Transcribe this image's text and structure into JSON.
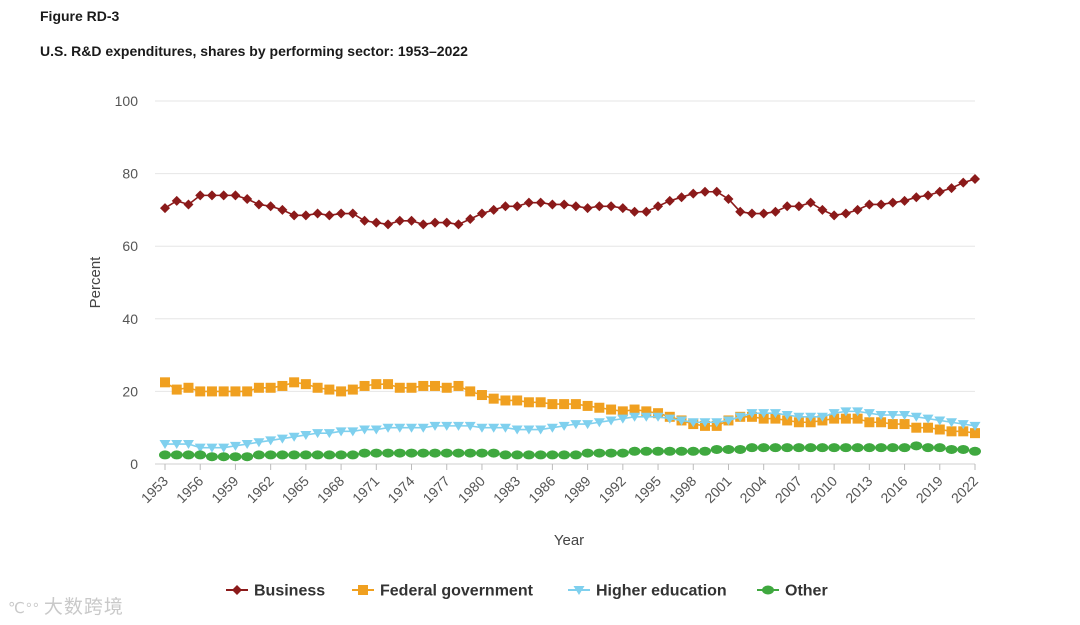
{
  "figure": {
    "label": "Figure RD-3",
    "title": "U.S. R&D expenditures, shares by performing sector: 1953–2022"
  },
  "watermark": {
    "logo": "℃°°",
    "text": "大数跨境"
  },
  "chart_data": {
    "type": "line",
    "title": "U.S. R&D expenditures, shares by performing sector: 1953–2022",
    "xlabel": "Year",
    "ylabel": "Percent",
    "ylim": [
      0,
      100
    ],
    "yticks": [
      0,
      20,
      40,
      60,
      80,
      100
    ],
    "xticks": [
      1953,
      1956,
      1959,
      1962,
      1965,
      1968,
      1971,
      1974,
      1977,
      1980,
      1983,
      1986,
      1989,
      1992,
      1995,
      1998,
      2001,
      2004,
      2007,
      2010,
      2013,
      2016,
      2019,
      2022
    ],
    "grid": true,
    "legend_position": "bottom",
    "x": [
      1953,
      1954,
      1955,
      1956,
      1957,
      1958,
      1959,
      1960,
      1961,
      1962,
      1963,
      1964,
      1965,
      1966,
      1967,
      1968,
      1969,
      1970,
      1971,
      1972,
      1973,
      1974,
      1975,
      1976,
      1977,
      1978,
      1979,
      1980,
      1981,
      1982,
      1983,
      1984,
      1985,
      1986,
      1987,
      1988,
      1989,
      1990,
      1991,
      1992,
      1993,
      1994,
      1995,
      1996,
      1997,
      1998,
      1999,
      2000,
      2001,
      2002,
      2003,
      2004,
      2005,
      2006,
      2007,
      2008,
      2009,
      2010,
      2011,
      2012,
      2013,
      2014,
      2015,
      2016,
      2017,
      2018,
      2019,
      2020,
      2021,
      2022
    ],
    "series": [
      {
        "name": "Business",
        "color": "#8b1a1a",
        "marker": "diamond",
        "values": [
          70.5,
          72.5,
          71.5,
          74,
          74,
          74,
          74,
          73,
          71.5,
          71,
          70,
          68.5,
          68.5,
          69,
          68.5,
          69,
          69,
          67,
          66.5,
          66,
          67,
          67,
          66,
          66.5,
          66.5,
          66,
          67.5,
          69,
          70,
          71,
          71,
          72,
          72,
          71.5,
          71.5,
          71,
          70.5,
          71,
          71,
          70.5,
          69.5,
          69.5,
          71,
          72.5,
          73.5,
          74.5,
          75,
          75,
          73,
          69.5,
          69,
          69,
          69.5,
          71,
          71,
          72,
          70,
          68.5,
          69,
          70,
          71.5,
          71.5,
          72,
          72.5,
          73.5,
          74,
          75,
          76,
          77.5,
          78.5
        ]
      },
      {
        "name": "Federal government",
        "color": "#f0a020",
        "marker": "square",
        "values": [
          22.5,
          20.5,
          21,
          20,
          20,
          20,
          20,
          20,
          21,
          21,
          21.5,
          22.5,
          22,
          21,
          20.5,
          20,
          20.5,
          21.5,
          22,
          22,
          21,
          21,
          21.5,
          21.5,
          21,
          21.5,
          20,
          19,
          18,
          17.5,
          17.5,
          17,
          17,
          16.5,
          16.5,
          16.5,
          16,
          15.5,
          15,
          14.5,
          15,
          14.5,
          14,
          13,
          12,
          11,
          10.5,
          10.5,
          12,
          13,
          13,
          12.5,
          12.5,
          12,
          11.5,
          11.5,
          12,
          12.5,
          12.5,
          12.5,
          11.5,
          11.5,
          11,
          11,
          10,
          10,
          9.5,
          9,
          9,
          8.5
        ]
      },
      {
        "name": "Higher education",
        "color": "#7fd0ee",
        "marker": "triangle-down",
        "values": [
          5.5,
          5.5,
          5.5,
          4.5,
          4.5,
          4.5,
          5,
          5.5,
          6,
          6.5,
          7,
          7.5,
          8,
          8.5,
          8.5,
          9,
          9,
          9.5,
          9.5,
          10,
          10,
          10,
          10,
          10.5,
          10.5,
          10.5,
          10.5,
          10,
          10,
          10,
          9.5,
          9.5,
          9.5,
          10,
          10.5,
          11,
          11,
          11.5,
          12,
          12.5,
          13,
          13,
          13,
          12.5,
          12,
          11.5,
          11.5,
          11.5,
          12,
          13,
          14,
          14,
          14,
          13.5,
          13,
          13,
          13,
          14,
          14.5,
          14.5,
          14,
          13.5,
          13.5,
          13.5,
          13,
          12.5,
          12,
          11.5,
          11,
          10.5
        ]
      },
      {
        "name": "Other",
        "color": "#3fa83f",
        "marker": "circle",
        "values": [
          2.5,
          2.5,
          2.5,
          2.5,
          2,
          2,
          2,
          2,
          2.5,
          2.5,
          2.5,
          2.5,
          2.5,
          2.5,
          2.5,
          2.5,
          2.5,
          3,
          3,
          3,
          3,
          3,
          3,
          3,
          3,
          3,
          3,
          3,
          3,
          2.5,
          2.5,
          2.5,
          2.5,
          2.5,
          2.5,
          2.5,
          3,
          3,
          3,
          3,
          3.5,
          3.5,
          3.5,
          3.5,
          3.5,
          3.5,
          3.5,
          4,
          4,
          4,
          4.5,
          4.5,
          4.5,
          4.5,
          4.5,
          4.5,
          4.5,
          4.5,
          4.5,
          4.5,
          4.5,
          4.5,
          4.5,
          4.5,
          5,
          4.5,
          4.5,
          4,
          4,
          3.5
        ]
      }
    ]
  }
}
